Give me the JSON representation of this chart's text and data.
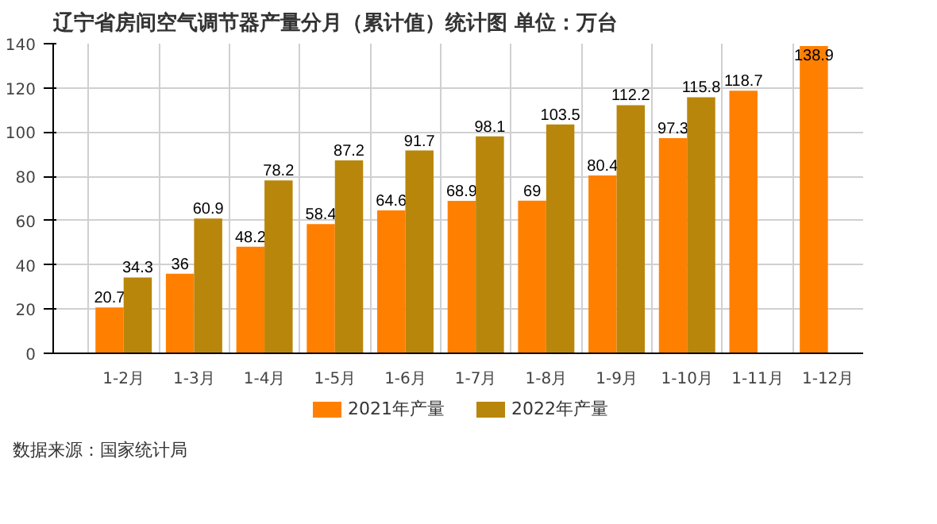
{
  "chart_data": {
    "type": "bar",
    "title": "辽宁省房间空气调节器产量分月（累计值）统计图 单位：万台",
    "categories": [
      "1-2月",
      "1-3月",
      "1-4月",
      "1-5月",
      "1-6月",
      "1-7月",
      "1-8月",
      "1-9月",
      "1-10月",
      "1-11月",
      "1-12月"
    ],
    "series": [
      {
        "name": "2021年产量",
        "color": "#ff8000",
        "values": [
          20.7,
          36,
          48.2,
          58.4,
          64.6,
          68.9,
          69,
          80.4,
          97.3,
          118.7,
          138.9
        ]
      },
      {
        "name": "2022年产量",
        "color": "#b8860b",
        "values": [
          34.3,
          60.9,
          78.2,
          87.2,
          91.7,
          98.1,
          103.5,
          112.2,
          115.8,
          null,
          null
        ]
      }
    ],
    "ylim": [
      0,
      140
    ],
    "yticks": [
      0,
      20,
      40,
      60,
      80,
      100,
      120,
      140
    ],
    "grid": true,
    "legend": "bottom",
    "data_labels": true,
    "annotations": [
      "数据来源：国家统计局"
    ]
  }
}
